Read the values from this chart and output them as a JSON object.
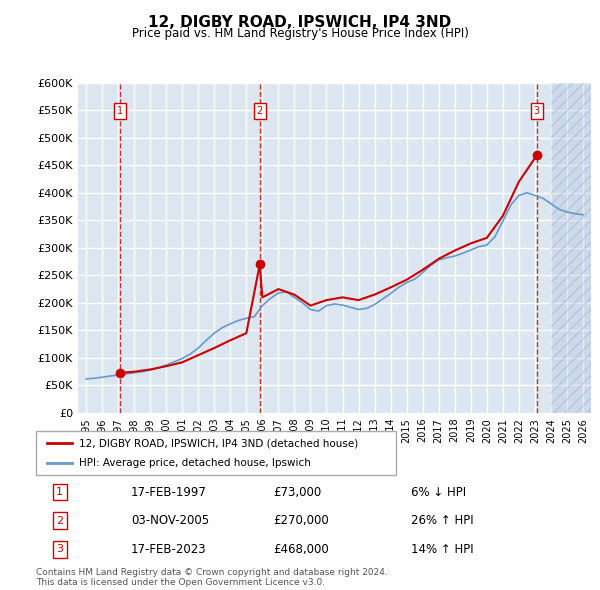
{
  "title": "12, DIGBY ROAD, IPSWICH, IP4 3ND",
  "subtitle": "Price paid vs. HM Land Registry's House Price Index (HPI)",
  "ylabel": "",
  "ylim": [
    0,
    600000
  ],
  "yticks": [
    0,
    50000,
    100000,
    150000,
    200000,
    250000,
    300000,
    350000,
    400000,
    450000,
    500000,
    550000,
    600000
  ],
  "ytick_labels": [
    "£0",
    "£50K",
    "£100K",
    "£150K",
    "£200K",
    "£250K",
    "£300K",
    "£350K",
    "£400K",
    "£450K",
    "£500K",
    "£550K",
    "£600K"
  ],
  "xlim_min": 1994.5,
  "xlim_max": 2026.5,
  "background_color": "#dce6f0",
  "plot_bg_color": "#dce6f0",
  "grid_color": "#ffffff",
  "hpi_line_color": "#6699cc",
  "price_line_color": "#cc0000",
  "sale_marker_color": "#cc0000",
  "vline_color": "#cc0000",
  "sales": [
    {
      "year": 1997.12,
      "price": 73000,
      "label": "1"
    },
    {
      "year": 2005.84,
      "price": 270000,
      "label": "2"
    },
    {
      "year": 2023.12,
      "price": 468000,
      "label": "3"
    }
  ],
  "hpi_years": [
    1995,
    1995.5,
    1996,
    1996.5,
    1997,
    1997.5,
    1998,
    1998.5,
    1999,
    1999.5,
    2000,
    2000.5,
    2001,
    2001.5,
    2002,
    2002.5,
    2003,
    2003.5,
    2004,
    2004.5,
    2005,
    2005.5,
    2006,
    2006.5,
    2007,
    2007.5,
    2008,
    2008.5,
    2009,
    2009.5,
    2010,
    2010.5,
    2011,
    2011.5,
    2012,
    2012.5,
    2013,
    2013.5,
    2014,
    2014.5,
    2015,
    2015.5,
    2016,
    2016.5,
    2017,
    2017.5,
    2018,
    2018.5,
    2019,
    2019.5,
    2020,
    2020.5,
    2021,
    2021.5,
    2022,
    2022.5,
    2023,
    2023.5,
    2024,
    2024.5,
    2025,
    2025.5,
    2026
  ],
  "hpi_values": [
    62000,
    63000,
    65000,
    67000,
    69000,
    71000,
    73000,
    75000,
    78000,
    82000,
    87000,
    93000,
    99000,
    107000,
    118000,
    132000,
    145000,
    155000,
    162000,
    168000,
    172000,
    175000,
    195000,
    208000,
    218000,
    220000,
    210000,
    200000,
    188000,
    185000,
    195000,
    198000,
    196000,
    192000,
    188000,
    190000,
    197000,
    207000,
    217000,
    228000,
    237000,
    243000,
    255000,
    268000,
    278000,
    282000,
    285000,
    290000,
    296000,
    302000,
    305000,
    320000,
    348000,
    378000,
    395000,
    400000,
    395000,
    390000,
    380000,
    370000,
    365000,
    362000,
    360000
  ],
  "prop_years": [
    1997.12,
    1998,
    1999,
    2000,
    2001,
    2002,
    2003,
    2004,
    2005,
    2005.84,
    2006,
    2007,
    2008,
    2009,
    2010,
    2011,
    2012,
    2013,
    2014,
    2015,
    2016,
    2017,
    2018,
    2019,
    2020,
    2021,
    2022,
    2023.12
  ],
  "prop_values": [
    73000,
    75000,
    79000,
    85000,
    92000,
    105000,
    118000,
    132000,
    145000,
    270000,
    210000,
    225000,
    215000,
    195000,
    205000,
    210000,
    205000,
    215000,
    228000,
    242000,
    260000,
    280000,
    295000,
    308000,
    318000,
    358000,
    420000,
    468000
  ],
  "legend_label_red": "12, DIGBY ROAD, IPSWICH, IP4 3ND (detached house)",
  "legend_label_blue": "HPI: Average price, detached house, Ipswich",
  "table_rows": [
    {
      "num": "1",
      "date": "17-FEB-1997",
      "price": "£73,000",
      "hpi": "6% ↓ HPI"
    },
    {
      "num": "2",
      "date": "03-NOV-2005",
      "price": "£270,000",
      "hpi": "26% ↑ HPI"
    },
    {
      "num": "3",
      "date": "17-FEB-2023",
      "price": "£468,000",
      "hpi": "14% ↑ HPI"
    }
  ],
  "footer": "Contains HM Land Registry data © Crown copyright and database right 2024.\nThis data is licensed under the Open Government Licence v3.0.",
  "hatch_start": 2024.0,
  "hatch_end": 2026.5
}
